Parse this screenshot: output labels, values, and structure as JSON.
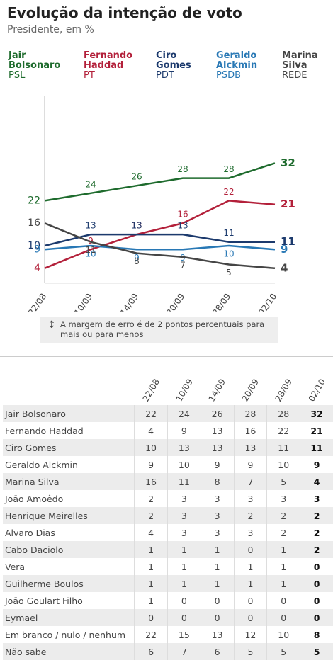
{
  "chart_data": {
    "type": "line",
    "title": "Evolução da intenção de voto",
    "subtitle": "Presidente, em %",
    "categories": [
      "22/08",
      "10/09",
      "14/09",
      "20/09",
      "28/09",
      "02/10"
    ],
    "series": [
      {
        "name": "Jair Bolsonaro",
        "party": "PSL",
        "color": "#1e6b2d",
        "values": [
          22,
          24,
          26,
          28,
          28,
          32
        ]
      },
      {
        "name": "Fernando Haddad",
        "party": "PT",
        "color": "#b3203a",
        "values": [
          4,
          9,
          13,
          16,
          22,
          21
        ]
      },
      {
        "name": "Ciro Gomes",
        "party": "PDT",
        "color": "#1c3a6d",
        "values": [
          10,
          13,
          13,
          13,
          11,
          11
        ]
      },
      {
        "name": "Geraldo Alckmin",
        "party": "PSDB",
        "color": "#2878b5",
        "values": [
          9,
          10,
          9,
          9,
          10,
          9
        ]
      },
      {
        "name": "Marina Silva",
        "party": "REDE",
        "color": "#454545",
        "values": [
          16,
          11,
          8,
          7,
          5,
          4
        ]
      }
    ],
    "ylim": [
      0,
      50
    ],
    "note": "A margem de erro é de 2 pontos percentuais para mais ou para menos"
  },
  "table": {
    "rows": [
      {
        "name": "Jair Bolsonaro",
        "values": [
          22,
          24,
          26,
          28,
          28,
          32
        ]
      },
      {
        "name": "Fernando Haddad",
        "values": [
          4,
          9,
          13,
          16,
          22,
          21
        ]
      },
      {
        "name": "Ciro Gomes",
        "values": [
          10,
          13,
          13,
          13,
          11,
          11
        ]
      },
      {
        "name": "Geraldo Alckmin",
        "values": [
          9,
          10,
          9,
          9,
          10,
          9
        ]
      },
      {
        "name": "Marina Silva",
        "values": [
          16,
          11,
          8,
          7,
          5,
          4
        ]
      },
      {
        "name": "João Amoêdo",
        "values": [
          2,
          3,
          3,
          3,
          3,
          3
        ]
      },
      {
        "name": "Henrique Meirelles",
        "values": [
          2,
          3,
          3,
          2,
          2,
          2
        ]
      },
      {
        "name": "Alvaro Dias",
        "values": [
          4,
          3,
          3,
          3,
          2,
          2
        ]
      },
      {
        "name": "Cabo Daciolo",
        "values": [
          1,
          1,
          1,
          0,
          1,
          2
        ]
      },
      {
        "name": "Vera",
        "values": [
          1,
          1,
          1,
          1,
          1,
          0
        ]
      },
      {
        "name": "Guilherme Boulos",
        "values": [
          1,
          1,
          1,
          1,
          1,
          0
        ]
      },
      {
        "name": "João Goulart Filho",
        "values": [
          1,
          0,
          0,
          0,
          0,
          0
        ]
      },
      {
        "name": "Eymael",
        "values": [
          0,
          0,
          0,
          0,
          0,
          0
        ]
      },
      {
        "name": "Em branco / nulo / nenhum",
        "values": [
          22,
          15,
          13,
          12,
          10,
          8
        ]
      },
      {
        "name": "Não sabe",
        "values": [
          6,
          7,
          6,
          5,
          5,
          5
        ]
      }
    ]
  }
}
